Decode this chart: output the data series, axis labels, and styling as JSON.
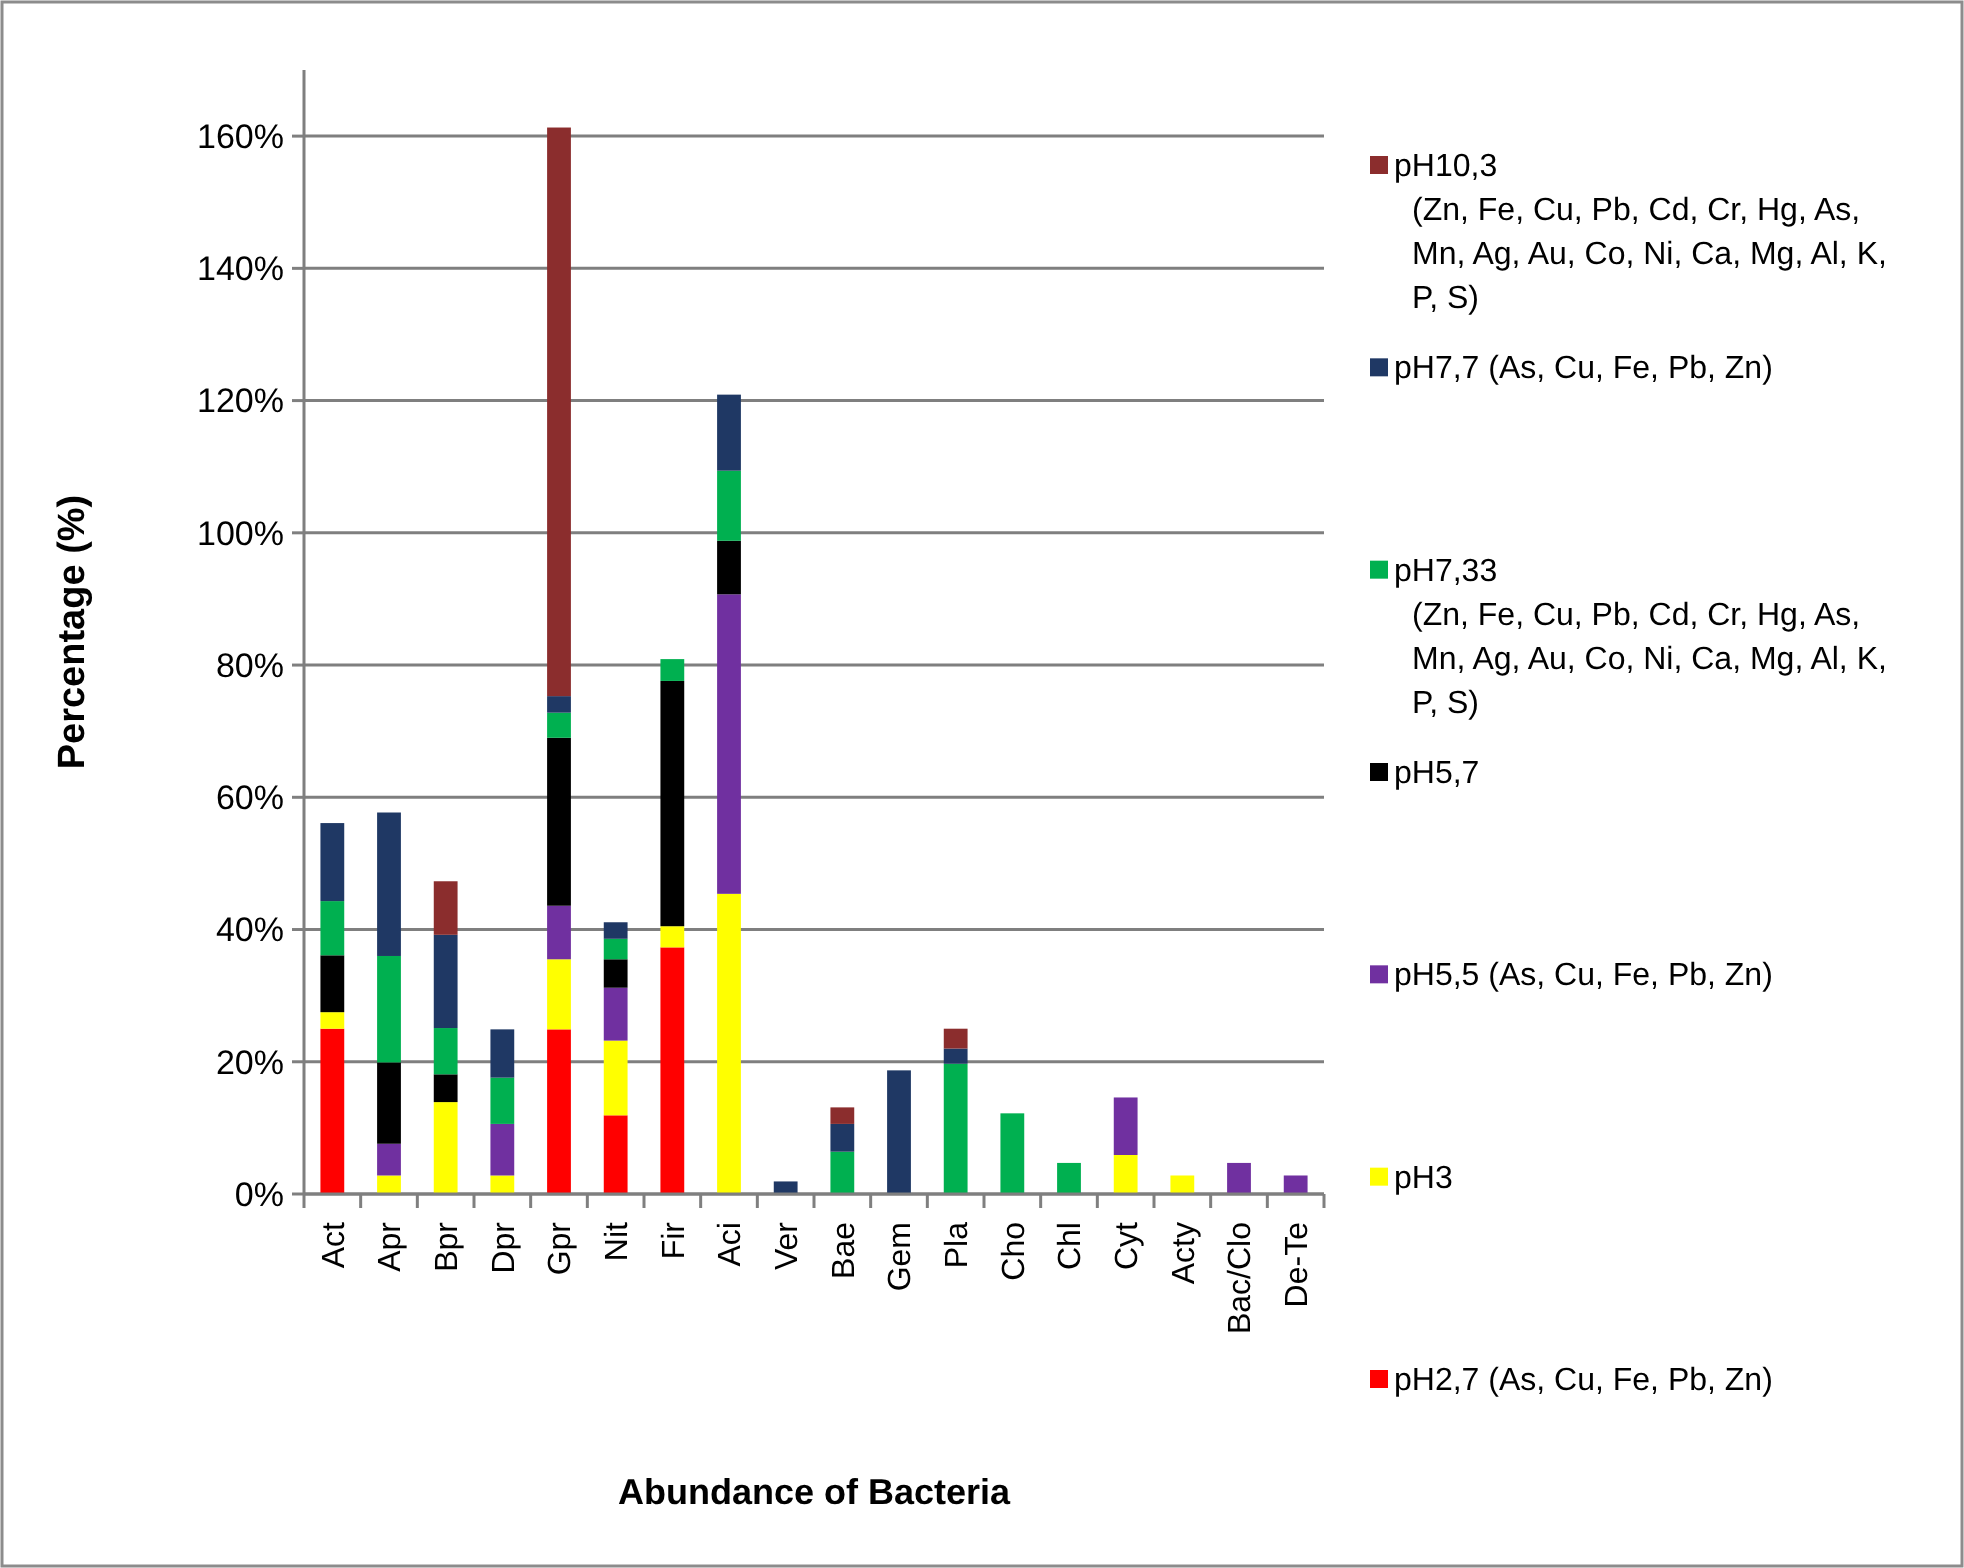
{
  "chart_data": {
    "type": "bar",
    "stacked": true,
    "xlabel": "Abundance of Bacteria",
    "ylabel": "Percentage (%)",
    "categories": [
      "Act",
      "Apr",
      "Bpr",
      "Dpr",
      "Gpr",
      "Nit",
      "Fir",
      "Aci",
      "Ver",
      "Bae",
      "Gem",
      "Pla",
      "Cho",
      "Chl",
      "Cyt",
      "Acty",
      "Bac/Clo",
      "De-Te"
    ],
    "ylim": [
      0,
      170
    ],
    "yticks": [
      {
        "value": 0,
        "label": "0%"
      },
      {
        "value": 20,
        "label": "20%"
      },
      {
        "value": 40,
        "label": "40%"
      },
      {
        "value": 60,
        "label": "60%"
      },
      {
        "value": 80,
        "label": "80%"
      },
      {
        "value": 100,
        "label": "100%"
      },
      {
        "value": 120,
        "label": "120%"
      },
      {
        "value": 140,
        "label": "140%"
      },
      {
        "value": 160,
        "label": "160%"
      }
    ],
    "grid": "y",
    "legend": "right",
    "series": [
      {
        "name": "pH2,7 (As, Cu, Fe, Pb, Zn)",
        "color": "#ff0000",
        "values": [
          25,
          0,
          0,
          0,
          24.9,
          11.9,
          37.3,
          0,
          0,
          0,
          0,
          0,
          0,
          0,
          0,
          0,
          0,
          0
        ]
      },
      {
        "name": "pH3",
        "color": "#ffff00",
        "values": [
          2.5,
          2.8,
          13.9,
          2.8,
          10.6,
          11.3,
          3.2,
          45.4,
          0,
          0,
          0,
          0,
          0,
          0,
          5.9,
          2.8,
          0,
          0
        ]
      },
      {
        "name": "pH5,5 (As, Cu, Fe, Pb, Zn)",
        "color": "#7030a0",
        "values": [
          0,
          4.8,
          0,
          7.8,
          8.1,
          8,
          0,
          45.3,
          0,
          0,
          0,
          0,
          0,
          0,
          8.7,
          0,
          4.7,
          2.8
        ]
      },
      {
        "name": "pH5,7",
        "color": "#000000",
        "values": [
          8.6,
          12.3,
          4.2,
          0,
          25.4,
          4.3,
          37.1,
          8.1,
          0,
          0,
          0,
          0,
          0,
          0,
          0,
          0,
          0,
          0
        ]
      },
      {
        "name": "pH7,33 (Zn, Fe, Cu, Pb, Cd, Cr, Hg, As, Mn, Ag, Au, Co, Ni, Ca, Mg, Al, K, P, S)",
        "color": "#00b050",
        "values": [
          8.2,
          16.1,
          7,
          7,
          3.8,
          3.1,
          3.3,
          10.6,
          0,
          6.4,
          0,
          19.7,
          12.2,
          4.7,
          0,
          0,
          0,
          0
        ]
      },
      {
        "name": "pH7,7 (As, Cu, Fe, Pb, Zn)",
        "color": "#1f3864",
        "values": [
          11.8,
          21.7,
          14.1,
          7.3,
          2.5,
          2.5,
          0,
          11.5,
          1.9,
          4.2,
          18.7,
          2.3,
          0,
          0,
          0,
          0,
          0,
          0
        ]
      },
      {
        "name": "pH10,3 (Zn, Fe, Cu, Pb, Cd, Cr, Hg, As, Mn, Ag, Au, Co, Ni, Ca, Mg, Al, K, P, S)",
        "color": "#8b2d2d",
        "values": [
          0,
          0,
          8.1,
          0,
          86,
          0,
          0,
          0,
          0,
          2.5,
          0,
          3,
          0,
          0,
          0,
          0,
          0,
          0
        ]
      }
    ]
  }
}
